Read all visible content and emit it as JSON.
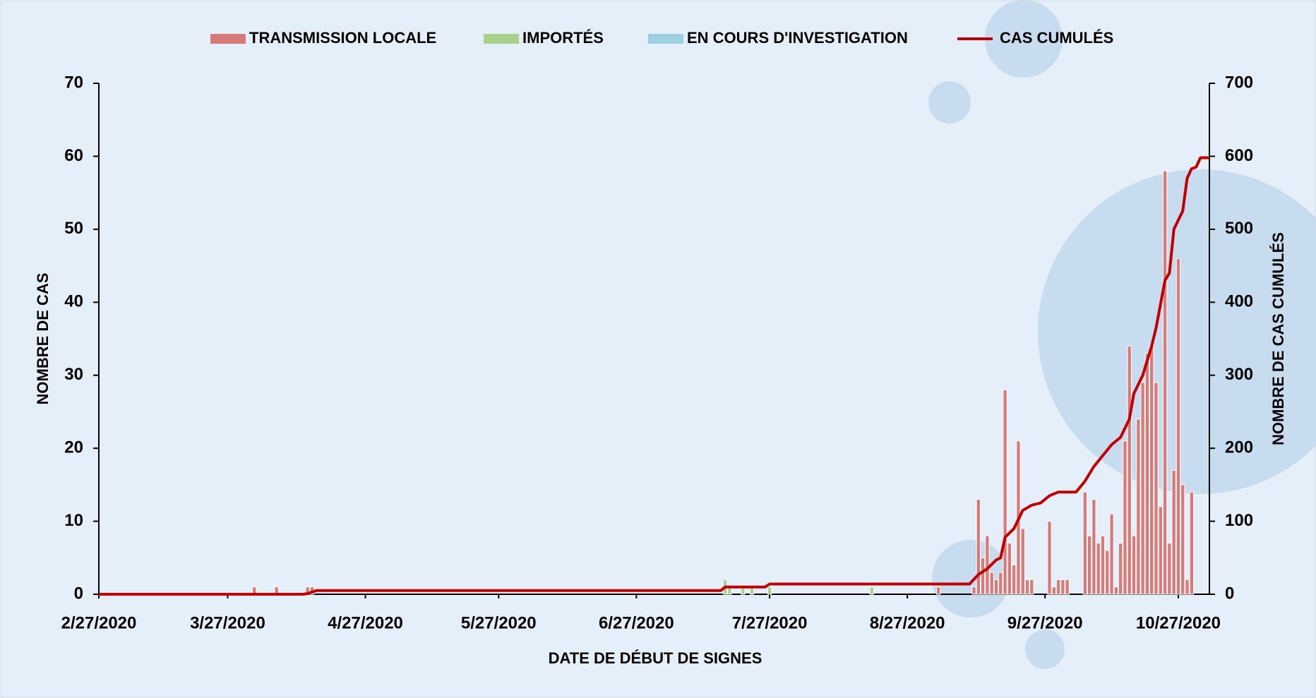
{
  "chart_data": {
    "type": "bar",
    "x_label": "DATE DE DÉBUT DE SIGNES",
    "y_label": "NOMBRE DE CAS",
    "y2_label": "NOMBRE DE CAS CUMULÉS",
    "xlim": [
      "2/27/2020",
      "11/3/2020"
    ],
    "xticks": [
      "2/27/2020",
      "3/27/2020",
      "4/27/2020",
      "5/27/2020",
      "6/27/2020",
      "7/27/2020",
      "8/27/2020",
      "9/27/2020",
      "10/27/2020"
    ],
    "ylim": [
      0,
      70
    ],
    "yticks": [
      0,
      10,
      20,
      30,
      40,
      50,
      60,
      70
    ],
    "y2lim": [
      0,
      700
    ],
    "y2ticks": [
      0,
      100,
      200,
      300,
      400,
      500,
      600,
      700
    ],
    "series": [
      {
        "name": "TRANSMISSION LOCALE",
        "type": "bar",
        "color": "#d77b7a",
        "x": [
          "4/2/2020",
          "4/7/2020",
          "4/14/2020",
          "4/15/2020",
          "9/3/2020",
          "9/11/2020",
          "9/12/2020",
          "9/13/2020",
          "9/14/2020",
          "9/15/2020",
          "9/16/2020",
          "9/17/2020",
          "9/18/2020",
          "9/19/2020",
          "9/20/2020",
          "9/21/2020",
          "9/22/2020",
          "9/23/2020",
          "9/24/2020",
          "9/28/2020",
          "9/29/2020",
          "9/30/2020",
          "10/1/2020",
          "10/2/2020",
          "10/6/2020",
          "10/7/2020",
          "10/8/2020",
          "10/9/2020",
          "10/10/2020",
          "10/11/2020",
          "10/12/2020",
          "10/13/2020",
          "10/14/2020",
          "10/15/2020",
          "10/16/2020",
          "10/17/2020",
          "10/18/2020",
          "10/19/2020",
          "10/20/2020",
          "10/21/2020",
          "10/22/2020",
          "10/23/2020",
          "10/24/2020",
          "10/25/2020",
          "10/26/2020",
          "10/27/2020",
          "10/28/2020",
          "10/29/2020",
          "10/30/2020"
        ],
        "values": [
          1,
          1,
          1,
          1,
          1,
          1,
          13,
          5,
          8,
          3,
          2,
          3,
          28,
          7,
          4,
          21,
          9,
          2,
          2,
          10,
          1,
          2,
          2,
          2,
          14,
          8,
          13,
          7,
          8,
          6,
          11,
          1,
          7,
          21,
          34,
          8,
          24,
          29,
          33,
          34,
          29,
          12,
          58,
          7,
          17,
          46,
          15,
          2,
          14
        ]
      },
      {
        "name": "IMPORTÉS",
        "type": "bar",
        "color": "#a9d18e",
        "x": [
          "7/17/2020",
          "7/18/2020",
          "7/21/2020",
          "7/23/2020",
          "7/27/2020",
          "8/19/2020"
        ],
        "values": [
          2,
          1,
          1,
          1,
          1,
          1
        ]
      },
      {
        "name": "EN COURS D'INVESTIGATION",
        "type": "bar",
        "color": "#9dd1e2",
        "x": [],
        "values": []
      },
      {
        "name": "CAS CUMULÉS",
        "type": "line",
        "axis": "y2",
        "color": "#c00000",
        "x": [
          "2/27/2020",
          "4/13/2020",
          "4/14/2020",
          "4/15/2020",
          "4/16/2020",
          "7/16/2020",
          "7/17/2020",
          "7/26/2020",
          "7/27/2020",
          "9/10/2020",
          "9/12/2020",
          "9/14/2020",
          "9/16/2020",
          "9/17/2020",
          "9/18/2020",
          "9/20/2020",
          "9/22/2020",
          "9/24/2020",
          "9/26/2020",
          "9/28/2020",
          "9/30/2020",
          "10/4/2020",
          "10/6/2020",
          "10/8/2020",
          "10/10/2020",
          "10/12/2020",
          "10/14/2020",
          "10/16/2020",
          "10/17/2020",
          "10/19/2020",
          "10/21/2020",
          "10/22/2020",
          "10/24/2020",
          "10/25/2020",
          "10/26/2020",
          "10/28/2020",
          "10/29/2020",
          "10/30/2020",
          "10/31/2020",
          "11/1/2020",
          "11/3/2020"
        ],
        "values": [
          0,
          0,
          1,
          3,
          5,
          5,
          10,
          10,
          14,
          14,
          27,
          35,
          47,
          50,
          78,
          90,
          115,
          122,
          125,
          135,
          140,
          140,
          155,
          175,
          190,
          205,
          215,
          240,
          275,
          300,
          340,
          365,
          430,
          440,
          500,
          525,
          570,
          583,
          585,
          598,
          598
        ]
      }
    ]
  }
}
